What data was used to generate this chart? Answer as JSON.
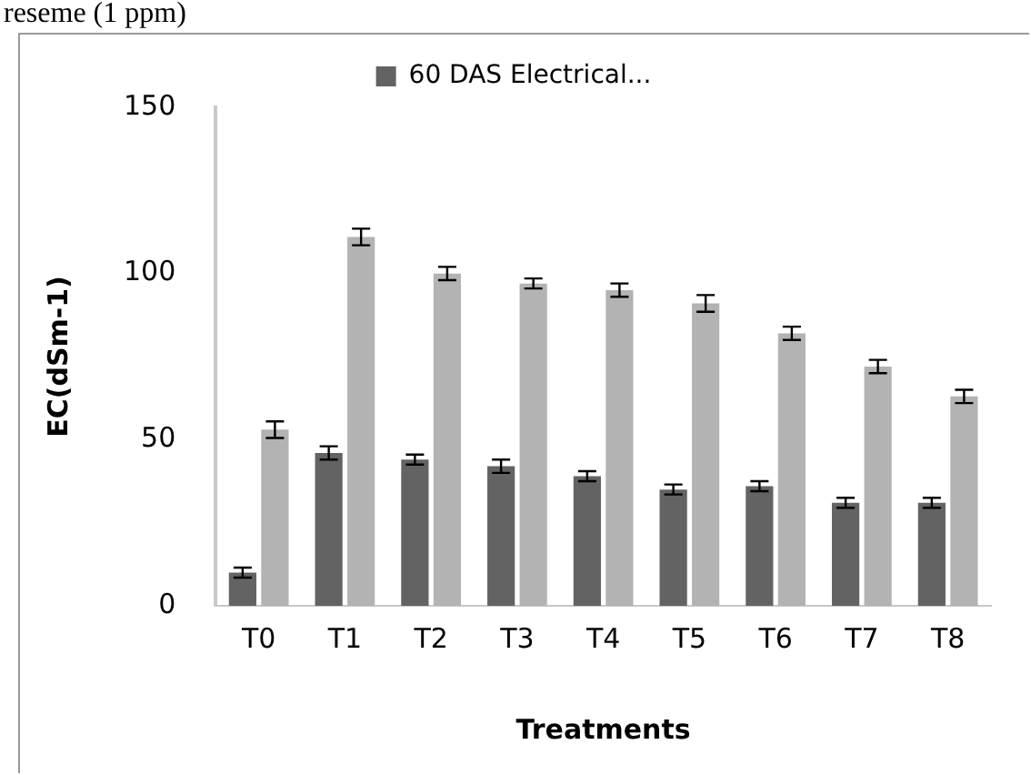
{
  "chart_data": {
    "type": "bar",
    "ylabel": "EC(dSm-1)",
    "xlabel": "Treatments",
    "annotations": [
      "reseme (1 ppm)"
    ],
    "categories": [
      "T0",
      "T1",
      "T2",
      "T3",
      "T4",
      "T5",
      "T6",
      "T7",
      "T8"
    ],
    "series": [
      {
        "name": "60 DAS Electrical...",
        "color": "#636363",
        "values": [
          10,
          46,
          44,
          42,
          39,
          35,
          36,
          31,
          31
        ],
        "errors": [
          1.5,
          2,
          1.5,
          2,
          1.5,
          1.5,
          1.5,
          1.5,
          1.5
        ]
      },
      {
        "color": "#b3b3b3",
        "values": [
          53,
          111,
          100,
          97,
          95,
          91,
          82,
          72,
          63
        ],
        "errors": [
          2.5,
          2.5,
          2,
          1.5,
          2,
          2.5,
          2,
          2,
          2
        ]
      }
    ],
    "ylim": [
      0,
      150
    ],
    "yticks": [
      0,
      50,
      100,
      150
    ],
    "grid": false,
    "legend": "top"
  }
}
